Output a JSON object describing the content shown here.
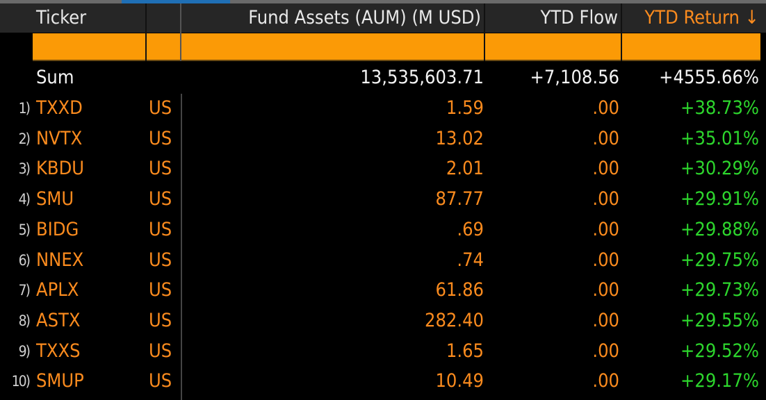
{
  "columns": {
    "ticker": "Ticker",
    "aum": "Fund Assets (AUM) (M USD)",
    "flow": "YTD Flow",
    "return": "YTD Return ↓"
  },
  "sort": {
    "column": "YTD Return",
    "direction": "descending"
  },
  "colors": {
    "header_bg": "#262626",
    "filter_bar": "#fb9a06",
    "ticker": "#fb8b1e",
    "positive": "#2dd62d",
    "sorted_header": "#fb8b1e"
  },
  "sum": {
    "label": "Sum",
    "aum": "13,535,603.71",
    "flow": "+7,108.56",
    "return": "+4555.66%"
  },
  "rows": [
    {
      "index": "1)",
      "ticker": "TXXD",
      "country": "US",
      "aum": "1.59",
      "flow": ".00",
      "return": "+38.73%"
    },
    {
      "index": "2)",
      "ticker": "NVTX",
      "country": "US",
      "aum": "13.02",
      "flow": ".00",
      "return": "+35.01%"
    },
    {
      "index": "3)",
      "ticker": "KBDU",
      "country": "US",
      "aum": "2.01",
      "flow": ".00",
      "return": "+30.29%"
    },
    {
      "index": "4)",
      "ticker": "SMU",
      "country": "US",
      "aum": "87.77",
      "flow": ".00",
      "return": "+29.91%"
    },
    {
      "index": "5)",
      "ticker": "BIDG",
      "country": "US",
      "aum": ".69",
      "flow": ".00",
      "return": "+29.88%"
    },
    {
      "index": "6)",
      "ticker": "NNEX",
      "country": "US",
      "aum": ".74",
      "flow": ".00",
      "return": "+29.75%"
    },
    {
      "index": "7)",
      "ticker": "APLX",
      "country": "US",
      "aum": "61.86",
      "flow": ".00",
      "return": "+29.73%"
    },
    {
      "index": "8)",
      "ticker": "ASTX",
      "country": "US",
      "aum": "282.40",
      "flow": ".00",
      "return": "+29.55%"
    },
    {
      "index": "9)",
      "ticker": "TXXS",
      "country": "US",
      "aum": "1.65",
      "flow": ".00",
      "return": "+29.52%"
    },
    {
      "index": "10)",
      "ticker": "SMUP",
      "country": "US",
      "aum": "10.49",
      "flow": ".00",
      "return": "+29.17%"
    }
  ]
}
